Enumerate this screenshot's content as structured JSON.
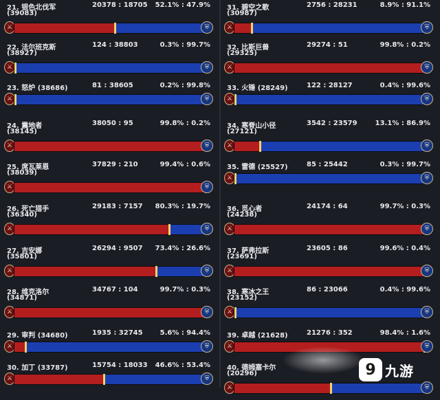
{
  "colors": {
    "horde": "#b41e1e",
    "alliance": "#1b3fb0",
    "separator": "#f1d36a"
  },
  "icons": {
    "left": "horde-icon",
    "right": "alliance-icon"
  },
  "entries": [
    {
      "rank": "21.",
      "name": "银色北伐军",
      "id": "(39083)",
      "counts": "20378 : 18705",
      "pcts": "52.1% : 47.9%",
      "horde_fraction": 0.521
    },
    {
      "rank": "22.",
      "name": "法尔班克斯",
      "id": "(38927)",
      "counts": "124 : 38803",
      "pcts": "0.3% : 99.7%",
      "horde_fraction": 0.003
    },
    {
      "rank": "23.",
      "name": "怒炉",
      "id": "(38686)",
      "counts": "81 : 38605",
      "pcts": "0.2% : 99.8%",
      "horde_fraction": 0.002
    },
    {
      "rank": "24.",
      "name": "震地者",
      "id": "(38145)",
      "counts": "38050 : 95",
      "pcts": "99.8% : 0.2%",
      "horde_fraction": 0.998
    },
    {
      "rank": "25.",
      "name": "席瓦莱恩",
      "id": "(38039)",
      "counts": "37829 : 210",
      "pcts": "99.4% : 0.6%",
      "horde_fraction": 0.994
    },
    {
      "rank": "26.",
      "name": "死亡猎手",
      "id": "(36340)",
      "counts": "29183 : 7157",
      "pcts": "80.3% : 19.7%",
      "horde_fraction": 0.803
    },
    {
      "rank": "27.",
      "name": "吉安娜",
      "id": "(35801)",
      "counts": "26294 : 9507",
      "pcts": "73.4% : 26.6%",
      "horde_fraction": 0.734
    },
    {
      "rank": "28.",
      "name": "维克洛尔",
      "id": "(34871)",
      "counts": "34767 : 104",
      "pcts": "99.7% : 0.3%",
      "horde_fraction": 0.997
    },
    {
      "rank": "29.",
      "name": "审判",
      "id": "(34680)",
      "counts": "1935 : 32745",
      "pcts": "5.6% : 94.4%",
      "horde_fraction": 0.056
    },
    {
      "rank": "30.",
      "name": "加丁",
      "id": "(33787)",
      "counts": "15754 : 18033",
      "pcts": "46.6% : 53.4%",
      "horde_fraction": 0.466
    },
    {
      "rank": "31.",
      "name": "碧空之歌",
      "id": "(30987)",
      "counts": "2756 : 28231",
      "pcts": "8.9% : 91.1%",
      "horde_fraction": 0.089
    },
    {
      "rank": "32.",
      "name": "比斯巨兽",
      "id": "(29325)",
      "counts": "29274 : 51",
      "pcts": "99.8% : 0.2%",
      "horde_fraction": 0.998
    },
    {
      "rank": "33.",
      "name": "火锤",
      "id": "(28249)",
      "counts": "122 : 28127",
      "pcts": "0.4% : 99.6%",
      "horde_fraction": 0.004
    },
    {
      "rank": "34.",
      "name": "寒脊山小径",
      "id": "(27121)",
      "counts": "3542 : 23579",
      "pcts": "13.1% : 86.9%",
      "horde_fraction": 0.131
    },
    {
      "rank": "35.",
      "name": "雷德",
      "id": "(25527)",
      "counts": "85 : 25442",
      "pcts": "0.3% : 99.7%",
      "horde_fraction": 0.003
    },
    {
      "rank": "36.",
      "name": "觅心者",
      "id": "(24238)",
      "counts": "24174 : 64",
      "pcts": "99.7% : 0.3%",
      "horde_fraction": 0.997
    },
    {
      "rank": "37.",
      "name": "萨弗拉斯",
      "id": "(23691)",
      "counts": "23605 : 86",
      "pcts": "99.6% : 0.4%",
      "horde_fraction": 0.996
    },
    {
      "rank": "38.",
      "name": "寒冰之王",
      "id": "(23152)",
      "counts": "86 : 23066",
      "pcts": "0.4% : 99.6%",
      "horde_fraction": 0.004
    },
    {
      "rank": "39.",
      "name": "卓越",
      "id": "(21628)",
      "counts": "21276 : 352",
      "pcts": "98.4% : 1.6%",
      "horde_fraction": 0.984
    },
    {
      "rank": "40.",
      "name": "德姆塞卡尔",
      "id": "(20296)",
      "counts": "",
      "pcts": "",
      "horde_fraction": 0.5
    }
  ],
  "watermark": {
    "mark": "9",
    "text": "九游"
  }
}
